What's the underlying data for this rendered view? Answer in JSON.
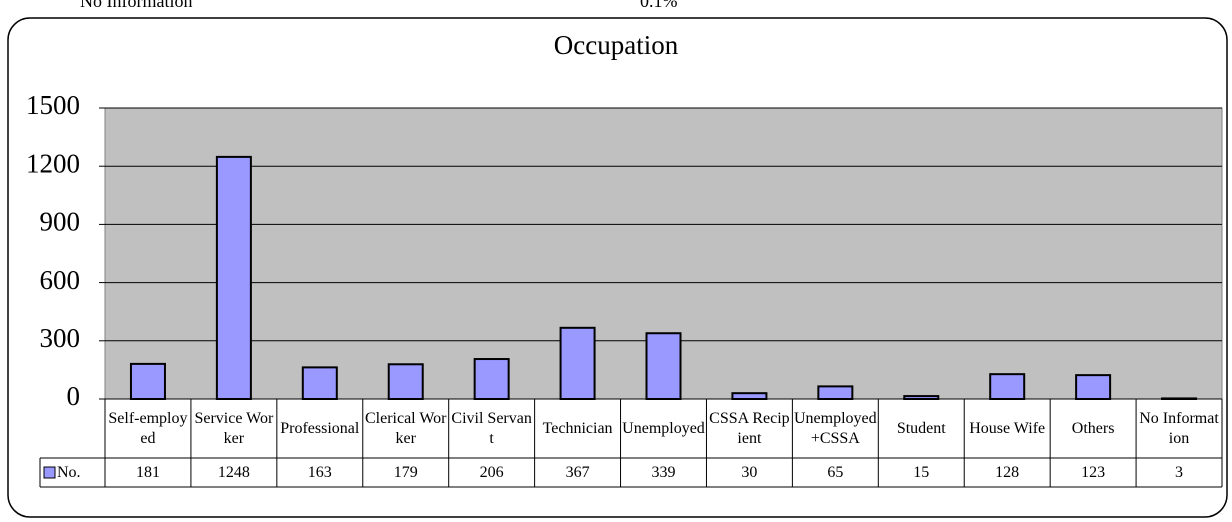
{
  "page_header": {
    "left": "No Information",
    "right": "0.1%"
  },
  "chart_data": {
    "type": "bar",
    "title": "Occupation",
    "categories": [
      "Self-employed",
      "Service Worker",
      "Professional",
      "Clerical Worker",
      "Civil Servant",
      "Technician",
      "Unemployed",
      "CSSA Recipient",
      "Unemployed+CSSA",
      "Student",
      "House Wife",
      "Others",
      "No Information"
    ],
    "series": [
      {
        "name": "No.",
        "color": "#9999ff",
        "values": [
          181,
          1248,
          163,
          179,
          206,
          367,
          339,
          30,
          65,
          15,
          128,
          123,
          3
        ]
      }
    ],
    "ylim": [
      0,
      1500
    ],
    "yticks": [
      0,
      300,
      600,
      900,
      1200,
      1500
    ],
    "grid": true,
    "plot_background": "#c0c0c0"
  }
}
